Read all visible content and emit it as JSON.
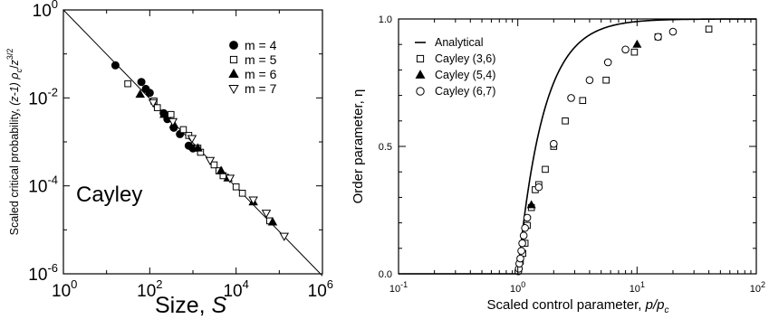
{
  "chart_data": [
    {
      "type": "scatter",
      "title": "",
      "annotation": "Cayley",
      "xlabel": "Size, S",
      "ylabel": "Scaled critical probability, (z-1) ρc/z^(3/2)",
      "xlabel_parts": [
        "Size, ",
        "S"
      ],
      "ylabel_parts": {
        "pre": "Scaled critical probability, ",
        "z1": "(z-1) ",
        "rho": "ρ",
        "c": "c",
        "slash": "/",
        "z": "z",
        "exp": "3/2"
      },
      "xscale": "log",
      "yscale": "log",
      "xlim": [
        1,
        1000000
      ],
      "ylim": [
        1e-06,
        1
      ],
      "x_ticks": [
        1,
        100,
        10000,
        1000000
      ],
      "x_tick_labels": [
        {
          "base": "10",
          "exp": "0"
        },
        {
          "base": "10",
          "exp": "2"
        },
        {
          "base": "10",
          "exp": "4"
        },
        {
          "base": "10",
          "exp": "6"
        }
      ],
      "y_ticks": [
        1e-06,
        0.0001,
        0.01,
        1
      ],
      "y_tick_labels": [
        {
          "base": "10",
          "exp": "-6"
        },
        {
          "base": "10",
          "exp": "-4"
        },
        {
          "base": "10",
          "exp": "-2"
        },
        {
          "base": "10",
          "exp": "0"
        }
      ],
      "grid": false,
      "legend_position": "top-right",
      "fit_line": {
        "x": [
          1,
          1000000
        ],
        "y": [
          1.0,
          9e-07
        ]
      },
      "series": [
        {
          "name": "m = 4",
          "marker": "filled-circle",
          "x": [
            16,
            64,
            81,
            100,
            210,
            256,
            360,
            500,
            800,
            1000
          ],
          "y": [
            0.055,
            0.023,
            0.016,
            0.013,
            0.0045,
            0.0033,
            0.0021,
            0.0015,
            0.00082,
            0.00071
          ]
        },
        {
          "name": "m = 5",
          "marker": "open-square",
          "x": [
            31,
            125,
            150,
            310,
            600,
            800,
            1300,
            1500,
            3100,
            4000,
            5000,
            10000,
            14000,
            60000
          ],
          "y": [
            0.021,
            0.0085,
            0.006,
            0.0042,
            0.0019,
            0.0014,
            0.00072,
            0.00058,
            0.0003,
            0.00022,
            0.00017,
            9.5e-05,
            6.8e-05,
            1.6e-05
          ]
        },
        {
          "name": "m = 6",
          "marker": "filled-triangle-up",
          "x": [
            60,
            216,
            360,
            1300,
            4500,
            6500,
            25000,
            70000
          ],
          "y": [
            0.012,
            0.0042,
            0.0025,
            0.00072,
            0.00022,
            0.00015,
            4.3e-05,
            1.5e-05
          ]
        },
        {
          "name": "m = 7",
          "marker": "open-triangle-down",
          "x": [
            120,
            343,
            950,
            2500,
            7200,
            25000,
            50000,
            130000
          ],
          "y": [
            0.0078,
            0.0029,
            0.0012,
            0.00038,
            0.00015,
            4.8e-05,
            2.4e-05,
            7.2e-06
          ]
        }
      ]
    },
    {
      "type": "scatter",
      "title": "",
      "xlabel": "Scaled control parameter, p/pc",
      "ylabel": "Order parameter, η",
      "xlabel_parts": {
        "pre": "Scaled control parameter, ",
        "p": "p/p",
        "c": "c"
      },
      "xscale": "log",
      "yscale": "linear",
      "xlim": [
        0.1,
        100
      ],
      "ylim": [
        0,
        1
      ],
      "x_ticks": [
        0.1,
        1,
        10,
        100
      ],
      "x_tick_labels": [
        {
          "base": "10",
          "exp": "-1"
        },
        {
          "base": "10",
          "exp": "0"
        },
        {
          "base": "10",
          "exp": "1"
        },
        {
          "base": "10",
          "exp": "2"
        }
      ],
      "y_ticks": [
        0,
        0.5,
        1
      ],
      "y_tick_labels": [
        "0.0",
        "0.5",
        "1.0"
      ],
      "grid": false,
      "legend_position": "top-left",
      "series": [
        {
          "name": "Analytical",
          "marker": "line",
          "model": "eta = 1 - 1/x^2 for x >= 1, else 0"
        },
        {
          "name": "Cayley (3,6)",
          "marker": "open-square",
          "x": [
            1.05,
            1.1,
            1.15,
            1.2,
            1.3,
            1.4,
            1.5,
            1.7,
            2.0,
            2.5,
            3.5,
            5.5,
            9.5,
            15,
            40
          ],
          "y": [
            0.05,
            0.08,
            0.12,
            0.19,
            0.26,
            0.33,
            0.35,
            0.41,
            0.5,
            0.6,
            0.68,
            0.76,
            0.87,
            0.93,
            0.96
          ]
        },
        {
          "name": "Cayley (5,4)",
          "marker": "filled-triangle-up",
          "x": [
            1.3,
            10
          ],
          "y": [
            0.27,
            0.9
          ]
        },
        {
          "name": "Cayley (6,7)",
          "marker": "open-circle",
          "x": [
            1.01,
            1.02,
            1.03,
            1.05,
            1.07,
            1.09,
            1.12,
            1.15,
            1.2,
            1.5,
            2.0,
            2.8,
            4.0,
            5.7,
            8.0,
            15,
            20
          ],
          "y": [
            0.01,
            0.02,
            0.04,
            0.06,
            0.09,
            0.12,
            0.15,
            0.18,
            0.22,
            0.34,
            0.51,
            0.69,
            0.76,
            0.83,
            0.88,
            0.93,
            0.95
          ]
        }
      ]
    }
  ]
}
